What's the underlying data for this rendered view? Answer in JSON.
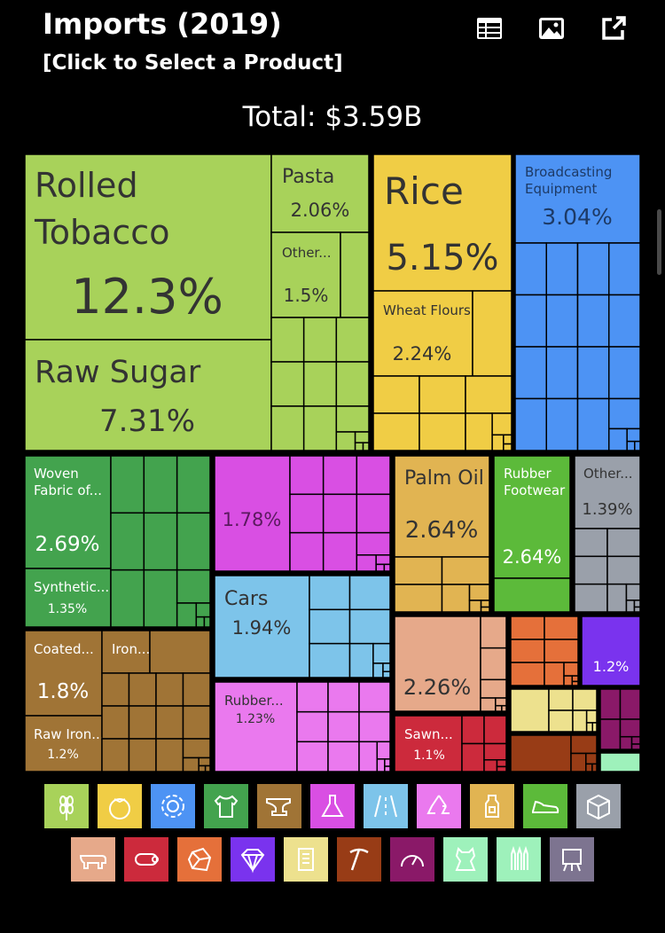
{
  "header": {
    "title": "Imports (2019)",
    "subtitle": "[Click to Select a Product]",
    "total": "Total: $3.59B",
    "toolbar": [
      {
        "name": "table-icon",
        "icon": "table"
      },
      {
        "name": "image-icon",
        "icon": "image"
      },
      {
        "name": "share-icon",
        "icon": "external-link"
      }
    ]
  },
  "chart_data": {
    "type": "treemap",
    "total": "$3.59B",
    "items": [
      {
        "label": "Rolled Tobacco",
        "value": 12.3,
        "display": "12.3%",
        "category": "Vegetable Products",
        "color": "#a8d25a"
      },
      {
        "label": "Raw Sugar",
        "value": 7.31,
        "display": "7.31%",
        "category": "Foodstuffs",
        "color": "#a8d25a"
      },
      {
        "label": "Pasta",
        "value": 2.06,
        "display": "2.06%",
        "category": "Foodstuffs",
        "color": "#a8d25a"
      },
      {
        "label": "Other...",
        "value": 1.5,
        "display": "1.5%",
        "category": "Foodstuffs",
        "color": "#a8d25a"
      },
      {
        "label": "Rice",
        "value": 5.15,
        "display": "5.15%",
        "category": "Vegetable Products",
        "color": "#f0cd45"
      },
      {
        "label": "Wheat Flours",
        "value": 2.24,
        "display": "2.24%",
        "category": "Vegetable Products",
        "color": "#f0cd45"
      },
      {
        "label": "Broadcasting Equipment",
        "value": 3.04,
        "display": "3.04%",
        "category": "Machines",
        "color": "#4d93f4"
      },
      {
        "label": "Woven Fabric of...",
        "value": 2.69,
        "display": "2.69%",
        "category": "Textiles",
        "color": "#43a34e"
      },
      {
        "label": "Synthetic...",
        "value": 1.35,
        "display": "1.35%",
        "category": "Textiles",
        "color": "#43a34e"
      },
      {
        "label": "",
        "value": 1.78,
        "display": "1.78%",
        "category": "Chemical Products",
        "color": "#d94fe3"
      },
      {
        "label": "Palm Oil",
        "value": 2.64,
        "display": "2.64%",
        "category": "Animal and Vegetable Bi-Products",
        "color": "#e1b452"
      },
      {
        "label": "Rubber Footwear",
        "value": 2.64,
        "display": "2.64%",
        "category": "Footwear and Headwear",
        "color": "#5cba3a"
      },
      {
        "label": "Other...",
        "value": 1.39,
        "display": "1.39%",
        "category": "Miscellaneous",
        "color": "#9aa0aa"
      },
      {
        "label": "Cars",
        "value": 1.94,
        "display": "1.94%",
        "category": "Transportation",
        "color": "#7dc4ea"
      },
      {
        "label": "Coated...",
        "value": 1.8,
        "display": "1.8%",
        "category": "Metals",
        "color": "#a07436"
      },
      {
        "label": "Iron...",
        "value": null,
        "display": "",
        "category": "Metals",
        "color": "#a07436"
      },
      {
        "label": "Raw Iron...",
        "value": 1.2,
        "display": "1.2%",
        "category": "Metals",
        "color": "#a07436"
      },
      {
        "label": "Rubber...",
        "value": 1.23,
        "display": "1.23%",
        "category": "Plastics and Rubbers",
        "color": "#ea79ee"
      },
      {
        "label": "",
        "value": 2.26,
        "display": "2.26%",
        "category": "Animal Products",
        "color": "#e6a98a"
      },
      {
        "label": "Sawn...",
        "value": 1.1,
        "display": "1.1%",
        "category": "Wood Products",
        "color": "#cc2a3c"
      },
      {
        "label": "",
        "value": 1.2,
        "display": "1.2%",
        "category": "Precious Metals",
        "color": "#7a33ee"
      }
    ]
  },
  "legend": [
    {
      "name": "vegetable-products",
      "icon": "wheat",
      "color": "#a8d25a"
    },
    {
      "name": "foodstuffs",
      "icon": "tomato",
      "color": "#f0cd45"
    },
    {
      "name": "machines",
      "icon": "gear",
      "color": "#4d93f4"
    },
    {
      "name": "textiles",
      "icon": "tshirt",
      "color": "#43a34e"
    },
    {
      "name": "metals",
      "icon": "anvil",
      "color": "#a07436"
    },
    {
      "name": "chemical-products",
      "icon": "flask",
      "color": "#d94fe3"
    },
    {
      "name": "transportation",
      "icon": "road",
      "color": "#7dc4ea"
    },
    {
      "name": "plastics-rubbers",
      "icon": "recycle",
      "color": "#ea79ee"
    },
    {
      "name": "animal-vegetable-bi-products",
      "icon": "bottle",
      "color": "#e1b452"
    },
    {
      "name": "footwear-headwear",
      "icon": "sneaker",
      "color": "#5cba3a"
    },
    {
      "name": "miscellaneous",
      "icon": "box",
      "color": "#9aa0aa"
    },
    {
      "name": "animal-products",
      "icon": "pig",
      "color": "#e6a98a"
    },
    {
      "name": "wood-products",
      "icon": "log",
      "color": "#cc2a3c"
    },
    {
      "name": "mineral-products",
      "icon": "rock",
      "color": "#e5703a"
    },
    {
      "name": "precious-metals",
      "icon": "diamond",
      "color": "#7a33ee"
    },
    {
      "name": "paper-goods",
      "icon": "scroll",
      "color": "#ede18e"
    },
    {
      "name": "stone-and-glass",
      "icon": "pickaxe",
      "color": "#983c16"
    },
    {
      "name": "instruments",
      "icon": "gauge",
      "color": "#8a1968"
    },
    {
      "name": "animal-hides",
      "icon": "hide",
      "color": "#9ef1bb"
    },
    {
      "name": "weapons",
      "icon": "bullets",
      "color": "#9ef1bb"
    },
    {
      "name": "arts-and-antiques",
      "icon": "easel",
      "color": "#7d7490"
    }
  ]
}
